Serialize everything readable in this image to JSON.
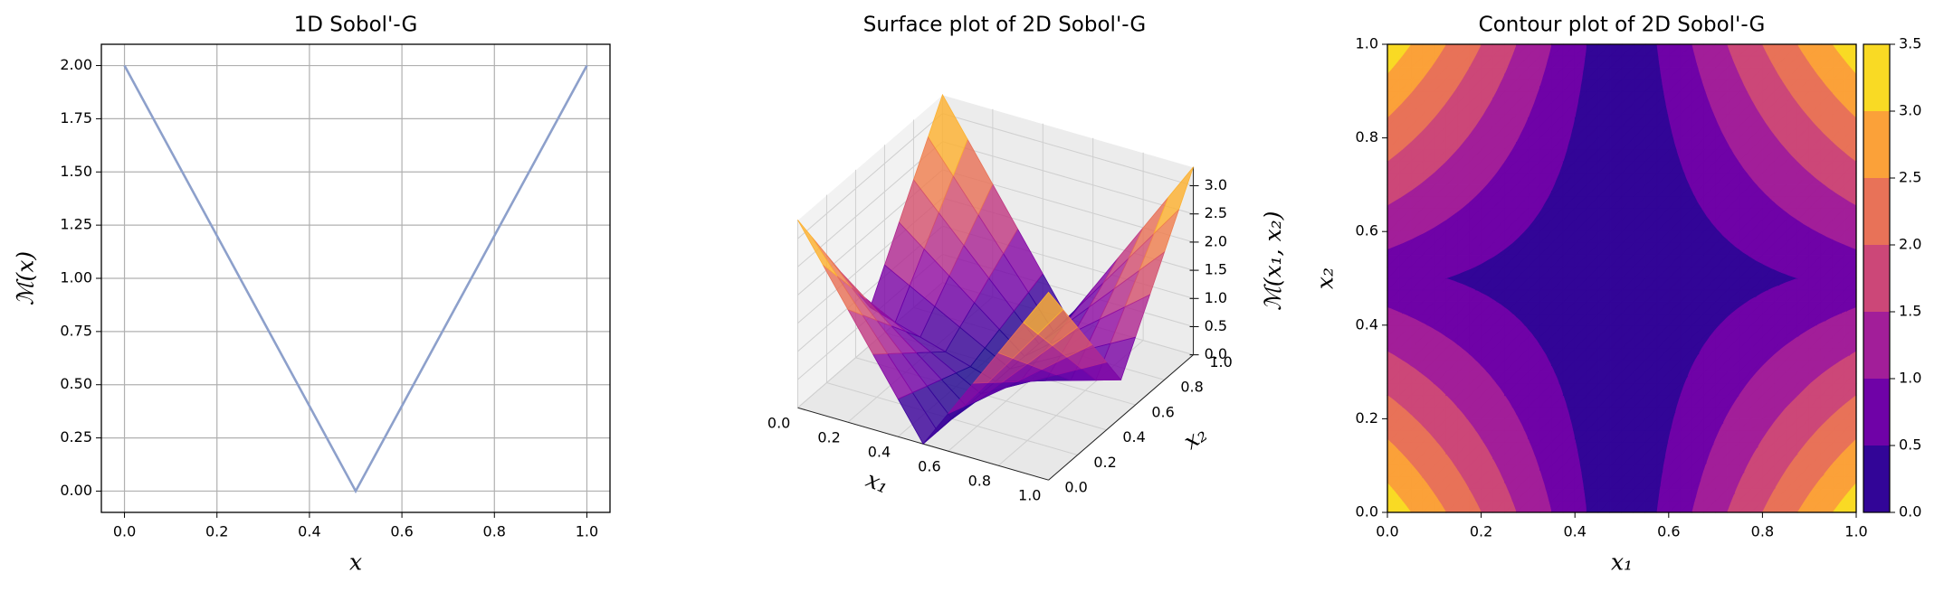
{
  "chart_data": [
    {
      "type": "line",
      "title": "1D Sobol'-G",
      "xlabel": "x",
      "ylabel": "ℳ(x)",
      "x": [
        0,
        0.5,
        1
      ],
      "values": [
        2,
        0,
        2
      ],
      "color": "#8da0cb",
      "xlim": [
        -0.05,
        1.05
      ],
      "ylim": [
        -0.1,
        2.1
      ],
      "xticks": [
        {
          "value": 0,
          "label": "0.0"
        },
        {
          "value": 0.2,
          "label": "0.2"
        },
        {
          "value": 0.4,
          "label": "0.4"
        },
        {
          "value": 0.6,
          "label": "0.6"
        },
        {
          "value": 0.8,
          "label": "0.8"
        },
        {
          "value": 1,
          "label": "1.0"
        }
      ],
      "yticks": [
        {
          "value": 0,
          "label": "0.00"
        },
        {
          "value": 0.25,
          "label": "0.25"
        },
        {
          "value": 0.5,
          "label": "0.50"
        },
        {
          "value": 0.75,
          "label": "0.75"
        },
        {
          "value": 1,
          "label": "1.00"
        },
        {
          "value": 1.25,
          "label": "1.25"
        },
        {
          "value": 1.5,
          "label": "1.50"
        },
        {
          "value": 1.75,
          "label": "1.75"
        },
        {
          "value": 2,
          "label": "2.00"
        }
      ],
      "grid": true
    },
    {
      "type": "surface",
      "title": "Surface plot of 2D Sobol'-G",
      "xlabel": "x₁",
      "ylabel": "x₂",
      "zlabel": "ℳ(x₁, x₂)",
      "colormap": "plasma",
      "x": [
        0,
        0.1,
        0.2,
        0.3,
        0.4,
        0.5,
        0.6,
        0.7,
        0.8,
        0.9,
        1
      ],
      "y": [
        0,
        0.1,
        0.2,
        0.3,
        0.4,
        0.5,
        0.6,
        0.7,
        0.8,
        0.9,
        1
      ],
      "z": [
        [
          3.333,
          2.667,
          2,
          1.333,
          0.667,
          0,
          0.667,
          1.333,
          2,
          2.667,
          3.333
        ],
        [
          2.8,
          2.24,
          1.68,
          1.12,
          0.56,
          0,
          0.56,
          1.12,
          1.68,
          2.24,
          2.8
        ],
        [
          2.267,
          1.813,
          1.36,
          0.907,
          0.453,
          0,
          0.453,
          0.907,
          1.36,
          1.813,
          2.267
        ],
        [
          1.733,
          1.387,
          1.04,
          0.693,
          0.347,
          0,
          0.347,
          0.693,
          1.04,
          1.387,
          1.733
        ],
        [
          1.2,
          0.96,
          0.72,
          0.48,
          0.24,
          0,
          0.24,
          0.48,
          0.72,
          0.96,
          1.2
        ],
        [
          0.667,
          0.533,
          0.4,
          0.267,
          0.133,
          0,
          0.133,
          0.267,
          0.4,
          0.533,
          0.667
        ],
        [
          1.2,
          0.96,
          0.72,
          0.48,
          0.24,
          0,
          0.24,
          0.48,
          0.72,
          0.96,
          1.2
        ],
        [
          1.733,
          1.387,
          1.04,
          0.693,
          0.347,
          0,
          0.347,
          0.693,
          1.04,
          1.387,
          1.733
        ],
        [
          2.267,
          1.813,
          1.36,
          0.907,
          0.453,
          0,
          0.453,
          0.907,
          1.36,
          1.813,
          2.267
        ],
        [
          2.8,
          2.24,
          1.68,
          1.12,
          0.56,
          0,
          0.56,
          1.12,
          1.68,
          2.24,
          2.8
        ],
        [
          3.333,
          2.667,
          2,
          1.333,
          0.667,
          0,
          0.667,
          1.333,
          2,
          2.667,
          3.333
        ]
      ],
      "xlim": [
        0,
        1
      ],
      "ylim": [
        0,
        1
      ],
      "zlim": [
        0,
        3.333
      ],
      "xticks": [
        {
          "value": 0,
          "label": "0.0"
        },
        {
          "value": 0.2,
          "label": "0.2"
        },
        {
          "value": 0.4,
          "label": "0.4"
        },
        {
          "value": 0.6,
          "label": "0.6"
        },
        {
          "value": 0.8,
          "label": "0.8"
        },
        {
          "value": 1,
          "label": "1.0"
        }
      ],
      "yticks": [
        {
          "value": 0,
          "label": "0.0"
        },
        {
          "value": 0.2,
          "label": "0.2"
        },
        {
          "value": 0.4,
          "label": "0.4"
        },
        {
          "value": 0.6,
          "label": "0.6"
        },
        {
          "value": 0.8,
          "label": "0.8"
        },
        {
          "value": 1,
          "label": "1.0"
        }
      ],
      "zticks": [
        {
          "value": 0,
          "label": "0.0"
        },
        {
          "value": 0.5,
          "label": "0.5"
        },
        {
          "value": 1,
          "label": "1.0"
        },
        {
          "value": 1.5,
          "label": "1.5"
        },
        {
          "value": 2,
          "label": "2.0"
        },
        {
          "value": 2.5,
          "label": "2.5"
        },
        {
          "value": 3,
          "label": "3.0"
        }
      ]
    },
    {
      "type": "contour",
      "title": "Contour plot of 2D Sobol'-G",
      "xlabel": "x₁",
      "ylabel": "x₂",
      "colormap": "plasma",
      "x": [
        0,
        0.1,
        0.2,
        0.3,
        0.4,
        0.5,
        0.6,
        0.7,
        0.8,
        0.9,
        1
      ],
      "y": [
        0,
        0.1,
        0.2,
        0.3,
        0.4,
        0.5,
        0.6,
        0.7,
        0.8,
        0.9,
        1
      ],
      "z": [
        [
          3.333,
          2.667,
          2,
          1.333,
          0.667,
          0,
          0.667,
          1.333,
          2,
          2.667,
          3.333
        ],
        [
          2.8,
          2.24,
          1.68,
          1.12,
          0.56,
          0,
          0.56,
          1.12,
          1.68,
          2.24,
          2.8
        ],
        [
          2.267,
          1.813,
          1.36,
          0.907,
          0.453,
          0,
          0.453,
          0.907,
          1.36,
          1.813,
          2.267
        ],
        [
          1.733,
          1.387,
          1.04,
          0.693,
          0.347,
          0,
          0.347,
          0.693,
          1.04,
          1.387,
          1.733
        ],
        [
          1.2,
          0.96,
          0.72,
          0.48,
          0.24,
          0,
          0.24,
          0.48,
          0.72,
          0.96,
          1.2
        ],
        [
          0.667,
          0.533,
          0.4,
          0.267,
          0.133,
          0,
          0.133,
          0.267,
          0.4,
          0.533,
          0.667
        ],
        [
          1.2,
          0.96,
          0.72,
          0.48,
          0.24,
          0,
          0.24,
          0.48,
          0.72,
          0.96,
          1.2
        ],
        [
          1.733,
          1.387,
          1.04,
          0.693,
          0.347,
          0,
          0.347,
          0.693,
          1.04,
          1.387,
          1.733
        ],
        [
          2.267,
          1.813,
          1.36,
          0.907,
          0.453,
          0,
          0.453,
          0.907,
          1.36,
          1.813,
          2.267
        ],
        [
          2.8,
          2.24,
          1.68,
          1.12,
          0.56,
          0,
          0.56,
          1.12,
          1.68,
          2.24,
          2.8
        ],
        [
          3.333,
          2.667,
          2,
          1.333,
          0.667,
          0,
          0.667,
          1.333,
          2,
          2.667,
          3.333
        ]
      ],
      "levels": [
        {
          "value": 0,
          "label": "0.0"
        },
        {
          "value": 0.5,
          "label": "0.5"
        },
        {
          "value": 1,
          "label": "1.0"
        },
        {
          "value": 1.5,
          "label": "1.5"
        },
        {
          "value": 2,
          "label": "2.0"
        },
        {
          "value": 2.5,
          "label": "2.5"
        },
        {
          "value": 3,
          "label": "3.0"
        },
        {
          "value": 3.5,
          "label": "3.5"
        }
      ],
      "xlim": [
        0,
        1
      ],
      "ylim": [
        0,
        1
      ],
      "xticks": [
        {
          "value": 0,
          "label": "0.0"
        },
        {
          "value": 0.2,
          "label": "0.2"
        },
        {
          "value": 0.4,
          "label": "0.4"
        },
        {
          "value": 0.6,
          "label": "0.6"
        },
        {
          "value": 0.8,
          "label": "0.8"
        },
        {
          "value": 1,
          "label": "1.0"
        }
      ],
      "yticks": [
        {
          "value": 0,
          "label": "0.0"
        },
        {
          "value": 0.2,
          "label": "0.2"
        },
        {
          "value": 0.4,
          "label": "0.4"
        },
        {
          "value": 0.6,
          "label": "0.6"
        },
        {
          "value": 0.8,
          "label": "0.8"
        },
        {
          "value": 1,
          "label": "1.0"
        }
      ]
    }
  ]
}
